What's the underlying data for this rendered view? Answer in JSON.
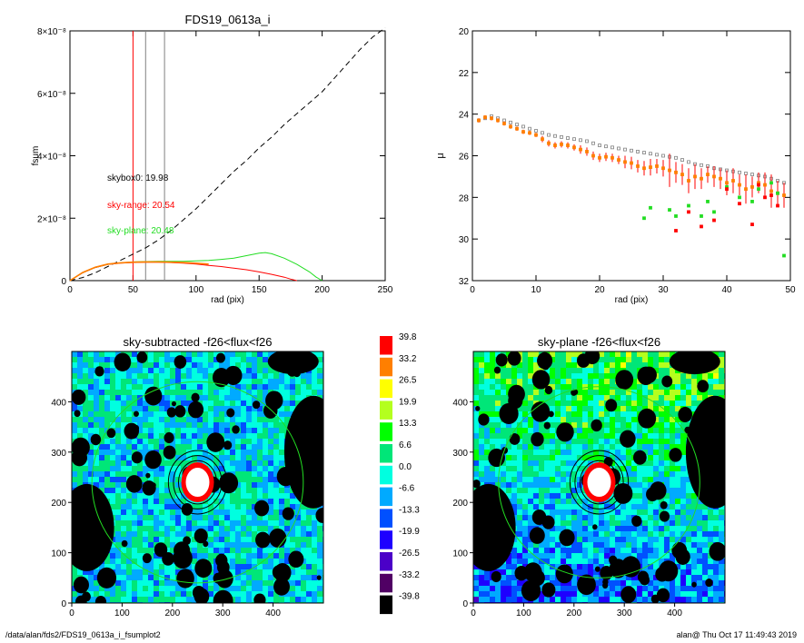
{
  "footer": {
    "left": "/data/alan/fds2/FDS19_0613a_i_fsumplot2",
    "right": "alan@  Thu Oct 17 11:49:43 2019"
  },
  "colors": {
    "black": "#000000",
    "red": "#ff0000",
    "green": "#22dd22",
    "gray": "#808080",
    "orange": "#ff7f00"
  },
  "chart_data": [
    {
      "type": "line",
      "title": "FDS19_0613a_i",
      "xlabel": "rad (pix)",
      "ylabel": "fsum",
      "xlim": [
        0,
        250
      ],
      "ylim": [
        0,
        8e-08
      ],
      "xticks": [
        "0",
        "50",
        "100",
        "150",
        "200",
        "250"
      ],
      "yticks": [
        "0",
        "2×10⁻⁸",
        "4×10⁻⁸",
        "6×10⁻⁸",
        "8×10⁻⁸"
      ],
      "vlines": [
        {
          "x": 50,
          "color": "#ff0000"
        },
        {
          "x": 60,
          "color": "#808080"
        },
        {
          "x": 75,
          "color": "#808080"
        }
      ],
      "annotations": [
        {
          "text": "skybox0: 19.98",
          "color": "#000000"
        },
        {
          "text": "sky-range: 20.54",
          "color": "#ff0000"
        },
        {
          "text": "sky-plane: 20.48",
          "color": "#22dd22"
        }
      ],
      "series": [
        {
          "color": "#000000",
          "style": "dashed",
          "x": [
            0,
            10,
            20,
            30,
            40,
            50,
            60,
            70,
            80,
            90,
            100,
            110,
            120,
            130,
            140,
            150,
            160,
            170,
            180,
            190,
            200,
            210,
            220,
            230,
            240,
            250
          ],
          "y": [
            0,
            1e-09,
            2.5e-09,
            4.5e-09,
            6.5e-09,
            8.5e-09,
            1.05e-08,
            1.3e-08,
            1.6e-08,
            1.95e-08,
            2.3e-08,
            2.7e-08,
            3.1e-08,
            3.5e-08,
            3.85e-08,
            4.25e-08,
            4.6e-08,
            5e-08,
            5.35e-08,
            5.7e-08,
            6.05e-08,
            6.5e-08,
            6.95e-08,
            7.4e-08,
            7.8e-08,
            8.1e-08
          ]
        },
        {
          "color": "#22dd22",
          "style": "solid",
          "x": [
            0,
            10,
            20,
            30,
            40,
            50,
            60,
            70,
            80,
            90,
            100,
            110,
            120,
            130,
            140,
            150,
            155,
            160,
            170,
            180,
            190,
            195,
            200
          ],
          "y": [
            0,
            2.5e-09,
            4.2e-09,
            5.2e-09,
            5.7e-09,
            6e-09,
            6.1e-09,
            6.2e-09,
            6.2e-09,
            6.2e-09,
            6.3e-09,
            6.5e-09,
            6.8e-09,
            7.2e-09,
            8e-09,
            8.8e-09,
            9e-09,
            8.6e-09,
            7.2e-09,
            5.2e-09,
            2.8e-09,
            1.2e-09,
            0
          ]
        },
        {
          "color": "#ff0000",
          "style": "solid",
          "x": [
            0,
            10,
            20,
            30,
            40,
            50,
            60,
            70,
            80,
            90,
            100,
            110,
            120,
            130,
            140,
            150,
            160,
            170,
            175,
            180
          ],
          "y": [
            0,
            2.5e-09,
            4.2e-09,
            5.2e-09,
            5.6e-09,
            5.8e-09,
            5.9e-09,
            5.9e-09,
            5.8e-09,
            5.6e-09,
            5.3e-09,
            4.9e-09,
            4.5e-09,
            4e-09,
            3.5e-09,
            2.8e-09,
            2e-09,
            1.1e-09,
            5e-10,
            0
          ]
        },
        {
          "color": "#ff7f00",
          "style": "solid",
          "x": [
            0,
            10,
            20,
            30,
            40,
            50,
            60,
            70,
            80,
            90,
            100,
            110
          ],
          "y": [
            0,
            2.6e-09,
            4.3e-09,
            5.3e-09,
            5.7e-09,
            5.9e-09,
            6e-09,
            6e-09,
            5.9e-09,
            5.8e-09,
            5.6e-09,
            5.3e-09
          ]
        }
      ]
    },
    {
      "type": "scatter",
      "title": "",
      "xlabel": "rad (pix)",
      "ylabel": "μ",
      "xlim": [
        0,
        50
      ],
      "ylim": [
        32,
        20
      ],
      "xticks": [
        "0",
        "10",
        "20",
        "30",
        "40",
        "50"
      ],
      "yticks": [
        "20",
        "22",
        "24",
        "26",
        "28",
        "30",
        "32"
      ],
      "series": [
        {
          "color": "#808080",
          "marker": "square",
          "x": [
            1,
            2,
            3,
            4,
            5,
            6,
            7,
            8,
            9,
            10,
            11,
            12,
            13,
            14,
            15,
            16,
            17,
            18,
            19,
            20,
            21,
            22,
            23,
            24,
            25,
            26,
            27,
            28,
            29,
            30,
            31,
            32,
            33,
            34,
            35,
            36,
            37,
            38,
            39,
            40,
            41,
            42,
            43,
            44,
            45,
            46,
            47,
            48,
            49
          ],
          "y": [
            24.3,
            24.2,
            24.1,
            24.2,
            24.3,
            24.4,
            24.5,
            24.6,
            24.7,
            24.8,
            24.9,
            25.0,
            25.05,
            25.1,
            25.15,
            25.2,
            25.25,
            25.3,
            25.4,
            25.5,
            25.55,
            25.6,
            25.65,
            25.7,
            25.75,
            25.8,
            25.85,
            25.9,
            25.95,
            26.0,
            26.05,
            26.1,
            26.2,
            26.3,
            26.4,
            26.45,
            26.5,
            26.6,
            26.65,
            26.7,
            26.75,
            26.8,
            26.85,
            26.9,
            26.95,
            27.0,
            27.1,
            27.2,
            27.3
          ]
        },
        {
          "color": "#ff7f00",
          "marker": "square",
          "x": [
            1,
            2,
            3,
            4,
            5,
            6,
            7,
            8,
            9,
            10,
            11,
            12,
            13,
            14,
            15,
            16,
            17,
            18,
            19,
            20,
            21,
            22,
            23,
            24,
            25,
            26,
            27,
            28,
            29,
            30,
            31,
            32,
            33,
            34,
            35,
            36,
            37,
            38,
            39,
            40,
            41,
            42,
            43,
            44,
            45,
            46,
            47,
            48,
            49
          ],
          "y": [
            24.3,
            24.15,
            24.2,
            24.3,
            24.45,
            24.6,
            24.7,
            24.85,
            24.9,
            25.0,
            25.2,
            25.4,
            25.5,
            25.45,
            25.5,
            25.6,
            25.7,
            25.8,
            26.0,
            26.1,
            26.05,
            26.1,
            26.2,
            26.3,
            26.35,
            26.5,
            26.6,
            26.55,
            26.5,
            26.6,
            26.7,
            26.8,
            26.9,
            27.2,
            27.0,
            27.1,
            26.9,
            27.0,
            27.1,
            27.3,
            27.2,
            27.4,
            27.6,
            27.5,
            27.3,
            27.4,
            27.7,
            27.8,
            27.9
          ],
          "yerr": [
            0.1,
            0.1,
            0.1,
            0.1,
            0.1,
            0.1,
            0.1,
            0.1,
            0.1,
            0.1,
            0.15,
            0.15,
            0.15,
            0.15,
            0.15,
            0.15,
            0.2,
            0.2,
            0.2,
            0.2,
            0.2,
            0.2,
            0.2,
            0.3,
            0.3,
            0.3,
            0.35,
            0.4,
            0.35,
            0.4,
            0.8,
            0.5,
            0.5,
            0.6,
            0.6,
            0.5,
            0.4,
            0.5,
            0.5,
            0.6,
            0.6,
            0.5,
            0.7,
            0.5,
            0.5,
            0.6,
            0.8,
            0.6,
            0.6
          ]
        },
        {
          "color": "#22dd22",
          "marker": "square",
          "x": [
            27,
            28,
            31,
            32,
            34,
            36,
            37,
            38,
            40,
            42,
            44,
            45,
            47,
            48,
            49
          ],
          "y": [
            29.0,
            28.5,
            28.6,
            28.9,
            28.4,
            28.9,
            28.2,
            28.7,
            27.5,
            28.0,
            28.2,
            27.6,
            27.3,
            27.8,
            30.8
          ]
        },
        {
          "color": "#ff0000",
          "marker": "square",
          "x": [
            32,
            34,
            36,
            38,
            40,
            42,
            44,
            45,
            46,
            47,
            48
          ],
          "y": [
            29.6,
            28.7,
            29.4,
            29.1,
            27.6,
            28.3,
            29.3,
            27.4,
            28.0,
            27.9,
            28.4
          ]
        }
      ]
    },
    {
      "type": "heatmap",
      "title": "sky-subtracted -f26<flux<f26",
      "xlim": [
        0,
        500
      ],
      "ylim": [
        0,
        500
      ],
      "xticks": [
        "0",
        "100",
        "200",
        "300",
        "400"
      ],
      "yticks": [
        "0",
        "100",
        "200",
        "300",
        "400"
      ],
      "center": [
        250,
        240
      ],
      "ellipses": [
        {
          "rx": 38,
          "ry": 43,
          "color": "#000000"
        },
        {
          "rx": 48,
          "ry": 53,
          "color": "#000000"
        },
        {
          "rx": 58,
          "ry": 63,
          "color": "#000000"
        },
        {
          "rx": 210,
          "ry": 200,
          "color": "#22dd22"
        }
      ]
    },
    {
      "type": "heatmap",
      "title": "sky-plane -f26<flux<f26",
      "xlim": [
        0,
        500
      ],
      "ylim": [
        0,
        500
      ],
      "xticks": [
        "0",
        "100",
        "200",
        "300",
        "400"
      ],
      "yticks": [
        "0",
        "100",
        "200",
        "300",
        "400"
      ],
      "center": [
        250,
        240
      ],
      "ellipses": [
        {
          "rx": 38,
          "ry": 43,
          "color": "#000000"
        },
        {
          "rx": 48,
          "ry": 53,
          "color": "#000000"
        },
        {
          "rx": 58,
          "ry": 63,
          "color": "#000000"
        },
        {
          "rx": 200,
          "ry": 190,
          "color": "#22dd22"
        }
      ]
    },
    {
      "type": "colorbar",
      "labels": [
        "39.8",
        "33.2",
        "26.5",
        "19.9",
        "13.3",
        "6.6",
        "0.0",
        "-6.6",
        "-13.3",
        "-19.9",
        "-26.5",
        "-33.2",
        "-39.8"
      ],
      "colors": [
        "#ff0000",
        "#ff7f00",
        "#ffff00",
        "#b4ff1e",
        "#00ff00",
        "#00e678",
        "#00ffe0",
        "#00aaff",
        "#0050ff",
        "#1e00ff",
        "#4b00c8",
        "#500064",
        "#000000"
      ]
    }
  ]
}
